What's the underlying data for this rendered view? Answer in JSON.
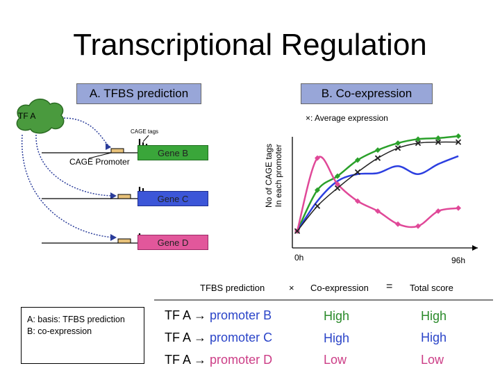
{
  "title": "Transcriptional Regulation",
  "panel_a": {
    "label": "A. TFBS prediction"
  },
  "panel_b": {
    "label": "B. Co-expression"
  },
  "tf_label": "TF A",
  "cage_tags_label": "CAGE tags",
  "cage_promoter_label": "CAGE Promoter",
  "genes": {
    "b": "Gene B",
    "c": "Gene C",
    "d": "Gene D"
  },
  "legend_avg": "×: Average expression",
  "chart": {
    "ylabel_line1": "No of CAGE tags",
    "ylabel_line2": "In each promoter",
    "x_start": "0h",
    "x_end": "96h"
  },
  "chart_data": {
    "type": "line",
    "xlabel": "",
    "ylabel": "No of CAGE tags In each promoter",
    "x_ticks": [
      "0h",
      "96h"
    ],
    "series": [
      {
        "color": "#2aa02a",
        "marker": "diamond",
        "values": [
          0.05,
          0.46,
          0.6,
          0.76,
          0.86,
          0.93,
          0.97,
          0.98,
          1.0
        ]
      },
      {
        "color": "#2c3fe0",
        "marker": "none",
        "values": [
          0.05,
          0.35,
          0.55,
          0.62,
          0.63,
          0.7,
          0.62,
          0.72,
          0.8
        ]
      },
      {
        "color": "#e04898",
        "marker": "diamond",
        "values": [
          0.05,
          0.78,
          0.52,
          0.35,
          0.25,
          0.12,
          0.1,
          0.25,
          0.28
        ]
      },
      {
        "color": "#222222",
        "marker": "x",
        "values": [
          0.05,
          0.3,
          0.48,
          0.64,
          0.78,
          0.88,
          0.93,
          0.94,
          0.94
        ]
      }
    ]
  },
  "score": {
    "headers": {
      "tfbs": "TFBS prediction",
      "times": "×",
      "coexp": "Co-expression",
      "equals": "=",
      "total": "Total score"
    },
    "basis_line1": "A: basis: TFBS prediction",
    "basis_line2": "B: co-expression",
    "rows": [
      {
        "tf": "TF A",
        "arrow": "→",
        "promoter": "promoter B",
        "coexp": "High",
        "total": "High"
      },
      {
        "tf": "TF A",
        "arrow": "→",
        "promoter": "promoter C",
        "coexp": "High",
        "total": "High"
      },
      {
        "tf": "TF A",
        "arrow": "→",
        "promoter": "promoter D",
        "coexp": "Low",
        "total": "Low"
      }
    ]
  }
}
